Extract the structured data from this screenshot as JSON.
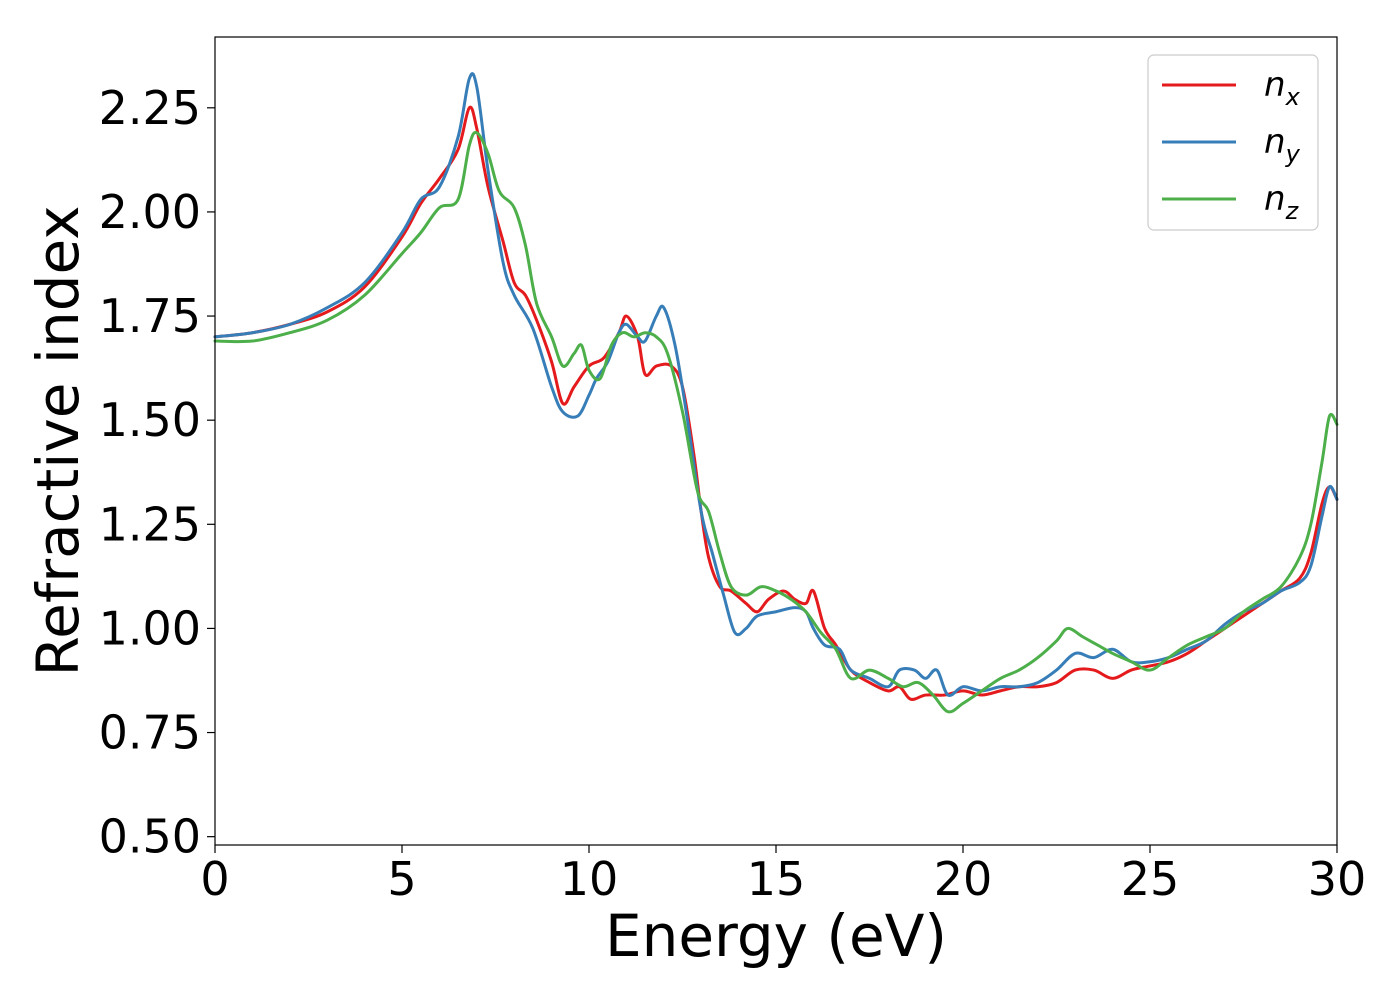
{
  "chart_data": {
    "type": "line",
    "xlabel": "Energy (eV)",
    "ylabel": "Refractive index",
    "xlim": [
      0,
      30
    ],
    "ylim": [
      0.48,
      2.42
    ],
    "xticks": [
      0,
      5,
      10,
      15,
      20,
      25,
      30
    ],
    "xtick_labels": [
      "0",
      "5",
      "10",
      "15",
      "20",
      "25",
      "30"
    ],
    "yticks": [
      0.5,
      0.75,
      1.0,
      1.25,
      1.5,
      1.75,
      2.0,
      2.25
    ],
    "ytick_labels": [
      "0.50",
      "0.75",
      "1.00",
      "1.25",
      "1.50",
      "1.75",
      "2.00",
      "2.25"
    ],
    "grid": false,
    "legend_position": "top-right",
    "series": [
      {
        "name": "n",
        "subscript": "x",
        "color": "#e41a1c",
        "x": [
          0,
          1,
          2,
          3,
          4,
          5,
          5.5,
          6,
          6.5,
          6.8,
          7.0,
          7.3,
          7.7,
          8.0,
          8.3,
          8.6,
          9.0,
          9.3,
          9.6,
          10.0,
          10.4,
          10.8,
          11.0,
          11.3,
          11.5,
          11.8,
          12.2,
          12.5,
          12.8,
          13.0,
          13.2,
          13.5,
          13.8,
          14.2,
          14.5,
          14.8,
          15.2,
          15.5,
          15.8,
          16.0,
          16.3,
          16.6,
          17.0,
          17.5,
          18.0,
          18.3,
          18.6,
          19.0,
          19.5,
          20.0,
          20.5,
          21.0,
          21.5,
          22.0,
          22.5,
          23.0,
          23.5,
          24.0,
          24.5,
          25.0,
          25.5,
          26.0,
          26.5,
          27.0,
          27.5,
          28.0,
          28.5,
          29.0,
          29.3,
          29.6,
          29.8,
          30.0
        ],
        "y": [
          1.7,
          1.71,
          1.73,
          1.76,
          1.82,
          1.94,
          2.02,
          2.08,
          2.15,
          2.25,
          2.2,
          2.06,
          1.93,
          1.83,
          1.8,
          1.74,
          1.64,
          1.54,
          1.58,
          1.63,
          1.65,
          1.71,
          1.75,
          1.7,
          1.61,
          1.63,
          1.63,
          1.58,
          1.42,
          1.28,
          1.17,
          1.1,
          1.09,
          1.06,
          1.04,
          1.07,
          1.09,
          1.07,
          1.06,
          1.09,
          1.0,
          0.96,
          0.9,
          0.87,
          0.85,
          0.86,
          0.83,
          0.84,
          0.84,
          0.85,
          0.84,
          0.85,
          0.86,
          0.86,
          0.87,
          0.9,
          0.9,
          0.88,
          0.9,
          0.91,
          0.92,
          0.94,
          0.97,
          1.0,
          1.03,
          1.06,
          1.09,
          1.12,
          1.18,
          1.3,
          1.34,
          1.31
        ]
      },
      {
        "name": "n",
        "subscript": "y",
        "color": "#377eb8",
        "x": [
          0,
          1,
          2,
          3,
          4,
          5,
          5.5,
          6,
          6.5,
          6.8,
          7.0,
          7.3,
          7.7,
          8.0,
          8.5,
          9.0,
          9.3,
          9.7,
          10.0,
          10.2,
          10.5,
          10.8,
          11.0,
          11.3,
          11.5,
          11.8,
          12.0,
          12.3,
          12.6,
          13.0,
          13.3,
          13.6,
          13.9,
          14.2,
          14.5,
          15.0,
          15.5,
          15.8,
          16.0,
          16.3,
          16.7,
          17.0,
          17.5,
          18.0,
          18.3,
          18.7,
          19.0,
          19.3,
          19.6,
          20.0,
          20.5,
          21.0,
          21.5,
          22.0,
          22.5,
          23.0,
          23.5,
          24.0,
          24.5,
          25.0,
          25.5,
          26.0,
          26.5,
          27.0,
          27.5,
          28.0,
          28.5,
          29.0,
          29.3,
          29.6,
          29.8,
          30.0
        ],
        "y": [
          1.7,
          1.71,
          1.73,
          1.77,
          1.83,
          1.95,
          2.03,
          2.06,
          2.18,
          2.32,
          2.3,
          2.1,
          1.88,
          1.8,
          1.72,
          1.58,
          1.52,
          1.51,
          1.56,
          1.6,
          1.64,
          1.71,
          1.73,
          1.7,
          1.69,
          1.75,
          1.77,
          1.68,
          1.52,
          1.28,
          1.18,
          1.08,
          0.99,
          1.0,
          1.03,
          1.04,
          1.05,
          1.04,
          1.0,
          0.96,
          0.95,
          0.9,
          0.88,
          0.86,
          0.9,
          0.9,
          0.88,
          0.9,
          0.84,
          0.86,
          0.85,
          0.86,
          0.86,
          0.87,
          0.9,
          0.94,
          0.93,
          0.95,
          0.92,
          0.92,
          0.93,
          0.95,
          0.97,
          1.01,
          1.04,
          1.06,
          1.09,
          1.11,
          1.15,
          1.27,
          1.34,
          1.31
        ]
      },
      {
        "name": "n",
        "subscript": "z",
        "color": "#4daf4a",
        "x": [
          0,
          1,
          2,
          3,
          4,
          5,
          5.5,
          6,
          6.5,
          6.8,
          7.0,
          7.3,
          7.6,
          8.0,
          8.3,
          8.6,
          9.0,
          9.3,
          9.6,
          9.8,
          10.0,
          10.3,
          10.6,
          10.9,
          11.2,
          11.5,
          11.8,
          12.1,
          12.5,
          12.9,
          13.2,
          13.5,
          13.8,
          14.2,
          14.6,
          15.0,
          15.4,
          15.8,
          16.2,
          16.6,
          17.0,
          17.5,
          18.0,
          18.4,
          18.8,
          19.2,
          19.6,
          20.0,
          20.5,
          21.0,
          21.5,
          22.0,
          22.5,
          22.8,
          23.2,
          23.6,
          24.0,
          24.5,
          25.0,
          25.5,
          26.0,
          26.5,
          27.0,
          27.5,
          28.0,
          28.5,
          29.0,
          29.3,
          29.6,
          29.8,
          30.0
        ],
        "y": [
          1.69,
          1.69,
          1.71,
          1.74,
          1.8,
          1.9,
          1.95,
          2.01,
          2.03,
          2.16,
          2.19,
          2.14,
          2.05,
          2.01,
          1.92,
          1.78,
          1.7,
          1.63,
          1.66,
          1.68,
          1.62,
          1.6,
          1.68,
          1.71,
          1.7,
          1.71,
          1.7,
          1.66,
          1.52,
          1.33,
          1.28,
          1.18,
          1.1,
          1.08,
          1.1,
          1.09,
          1.07,
          1.04,
          0.99,
          0.95,
          0.88,
          0.9,
          0.88,
          0.86,
          0.87,
          0.84,
          0.8,
          0.82,
          0.85,
          0.88,
          0.9,
          0.93,
          0.97,
          1.0,
          0.98,
          0.96,
          0.94,
          0.92,
          0.9,
          0.93,
          0.96,
          0.98,
          1.0,
          1.04,
          1.07,
          1.1,
          1.17,
          1.25,
          1.4,
          1.51,
          1.49
        ]
      }
    ]
  }
}
